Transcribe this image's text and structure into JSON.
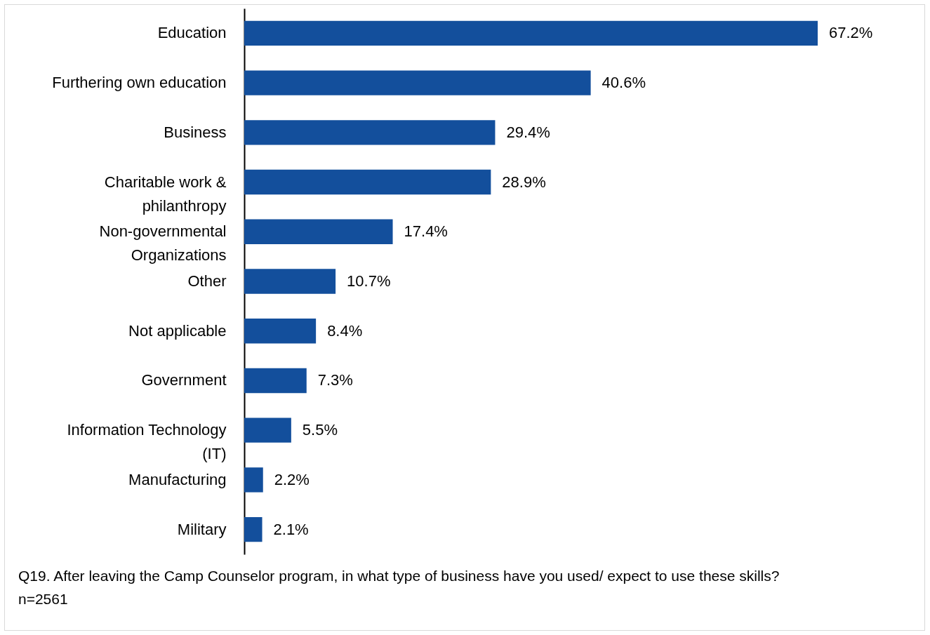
{
  "chart_data": {
    "type": "bar",
    "orientation": "horizontal",
    "categories": [
      "Education",
      "Furthering own education",
      "Business",
      "Charitable work & philanthropy",
      "Non-governmental Organizations",
      "Other",
      "Not applicable",
      "Government",
      "Information Technology (IT)",
      "Manufacturing",
      "Military"
    ],
    "values": [
      67.2,
      40.6,
      29.4,
      28.9,
      17.4,
      10.7,
      8.4,
      7.3,
      5.5,
      2.2,
      2.1
    ],
    "value_labels": [
      "67.2%",
      "40.6%",
      "29.4%",
      "28.9%",
      "17.4%",
      "10.7%",
      "8.4%",
      "7.3%",
      "5.5%",
      "2.2%",
      "2.1%"
    ],
    "color": "#134f9c",
    "annotations": [
      "Q19. After leaving the Camp Counselor program, in what type of business have you used/ expect to use these skills?",
      "n=2561"
    ]
  }
}
